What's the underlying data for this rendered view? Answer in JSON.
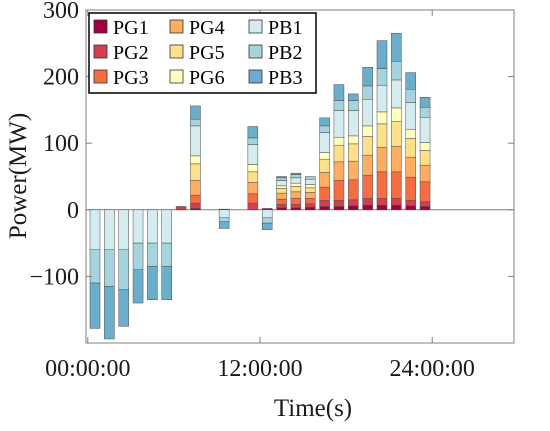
{
  "chart_data": {
    "type": "bar",
    "stacked": true,
    "xlabel": "Time(s)",
    "ylabel": "Power(MW)",
    "ylim": [
      -200,
      300
    ],
    "yticks": [
      -100,
      0,
      100,
      200,
      300
    ],
    "ytick_labels": [
      "−100",
      "0",
      "100",
      "200",
      "300"
    ],
    "xtick_labels": [
      "00:00:00",
      "12:00:00",
      "24:00:00"
    ],
    "xtick_hours": [
      0,
      12,
      24
    ],
    "categories": [
      "1",
      "2",
      "3",
      "4",
      "5",
      "6",
      "7",
      "8",
      "9",
      "10",
      "11",
      "12",
      "13",
      "14",
      "15",
      "16",
      "17",
      "18",
      "19",
      "20",
      "21",
      "22",
      "23",
      "24"
    ],
    "grid": false,
    "legend": {
      "position": "top-left",
      "columns": 3
    },
    "series": [
      {
        "name": "PG1",
        "color": "#9e0142",
        "values": [
          0,
          0,
          0,
          0,
          0,
          0,
          0,
          2,
          0,
          1,
          0,
          0,
          2,
          3,
          3,
          4,
          5,
          5,
          6,
          7,
          7,
          7,
          6,
          5
        ]
      },
      {
        "name": "PG2",
        "color": "#d53e4f",
        "values": [
          0,
          0,
          0,
          0,
          0,
          0,
          5,
          8,
          0,
          0,
          0,
          10,
          0,
          5,
          5,
          5,
          9,
          9,
          9,
          10,
          10,
          10,
          8,
          7
        ]
      },
      {
        "name": "PG3",
        "color": "#f46d43",
        "values": [
          0,
          0,
          0,
          0,
          0,
          0,
          0,
          12,
          0,
          0,
          0,
          14,
          0,
          8,
          9,
          8,
          20,
          30,
          30,
          35,
          40,
          40,
          35,
          30
        ]
      },
      {
        "name": "PG4",
        "color": "#fdae61",
        "values": [
          0,
          0,
          0,
          0,
          0,
          0,
          0,
          22,
          0,
          0,
          0,
          17,
          0,
          9,
          10,
          9,
          22,
          28,
          28,
          30,
          37,
          38,
          30,
          25
        ]
      },
      {
        "name": "PG5",
        "color": "#fee08b",
        "values": [
          0,
          0,
          0,
          0,
          0,
          0,
          0,
          25,
          0,
          0,
          0,
          16,
          0,
          7,
          8,
          7,
          20,
          25,
          26,
          28,
          35,
          38,
          28,
          22
        ]
      },
      {
        "name": "PG6",
        "color": "#ffffbf",
        "values": [
          0,
          0,
          0,
          0,
          0,
          0,
          0,
          12,
          0,
          0,
          0,
          11,
          0,
          4,
          5,
          5,
          10,
          12,
          12,
          16,
          18,
          20,
          14,
          12
        ]
      },
      {
        "name": "PB1",
        "color": "#d4ecf0",
        "values": [
          -60,
          -60,
          -60,
          -50,
          -50,
          -50,
          0,
          45,
          0,
          -12,
          0,
          30,
          -12,
          8,
          8,
          8,
          30,
          40,
          38,
          40,
          40,
          42,
          40,
          38
        ]
      },
      {
        "name": "PB2",
        "color": "#a6d3dd",
        "values": [
          -50,
          -55,
          -60,
          -40,
          -35,
          -35,
          0,
          10,
          0,
          -6,
          0,
          10,
          -8,
          4,
          5,
          4,
          10,
          15,
          15,
          20,
          25,
          28,
          20,
          15
        ]
      },
      {
        "name": "PB3",
        "color": "#6aaecb",
        "values": [
          -68,
          -79,
          -55,
          -50,
          -50,
          -50,
          0,
          20,
          0,
          -10,
          0,
          17,
          -10,
          2,
          2,
          0,
          12,
          24,
          10,
          28,
          42,
          42,
          25,
          15
        ]
      }
    ]
  }
}
